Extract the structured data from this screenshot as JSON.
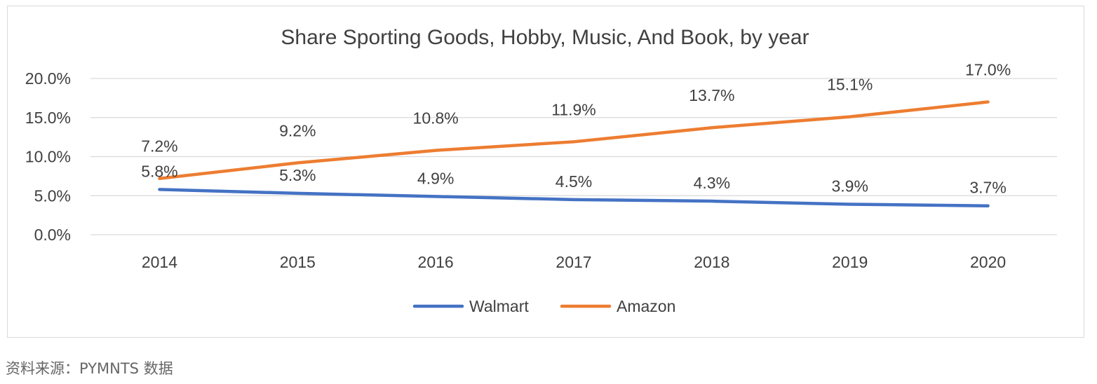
{
  "chart_data": {
    "type": "line",
    "title": "Share Sporting Goods, Hobby, Music, And Book, by year",
    "categories": [
      "2014",
      "2015",
      "2016",
      "2017",
      "2018",
      "2019",
      "2020"
    ],
    "series": [
      {
        "name": "Walmart",
        "color": "#4472C4",
        "values": [
          5.8,
          5.3,
          4.9,
          4.5,
          4.3,
          3.9,
          3.7
        ],
        "labels": [
          "5.8%",
          "5.3%",
          "4.9%",
          "4.5%",
          "4.3%",
          "3.9%",
          "3.7%"
        ]
      },
      {
        "name": "Amazon",
        "color": "#ED7D31",
        "values": [
          7.2,
          9.2,
          10.8,
          11.9,
          13.7,
          15.1,
          17.0
        ],
        "labels": [
          "7.2%",
          "9.2%",
          "10.8%",
          "11.9%",
          "13.7%",
          "15.1%",
          "17.0%"
        ]
      }
    ],
    "yticks": [
      {
        "value": 0,
        "label": "0.0%"
      },
      {
        "value": 5,
        "label": "5.0%"
      },
      {
        "value": 10,
        "label": "10.0%"
      },
      {
        "value": 15,
        "label": "15.0%"
      },
      {
        "value": 20,
        "label": "20.0%"
      }
    ],
    "ylim": [
      0,
      20
    ],
    "grid": true,
    "legend_position": "bottom"
  },
  "source": "资料来源：PYMNTS 数据"
}
